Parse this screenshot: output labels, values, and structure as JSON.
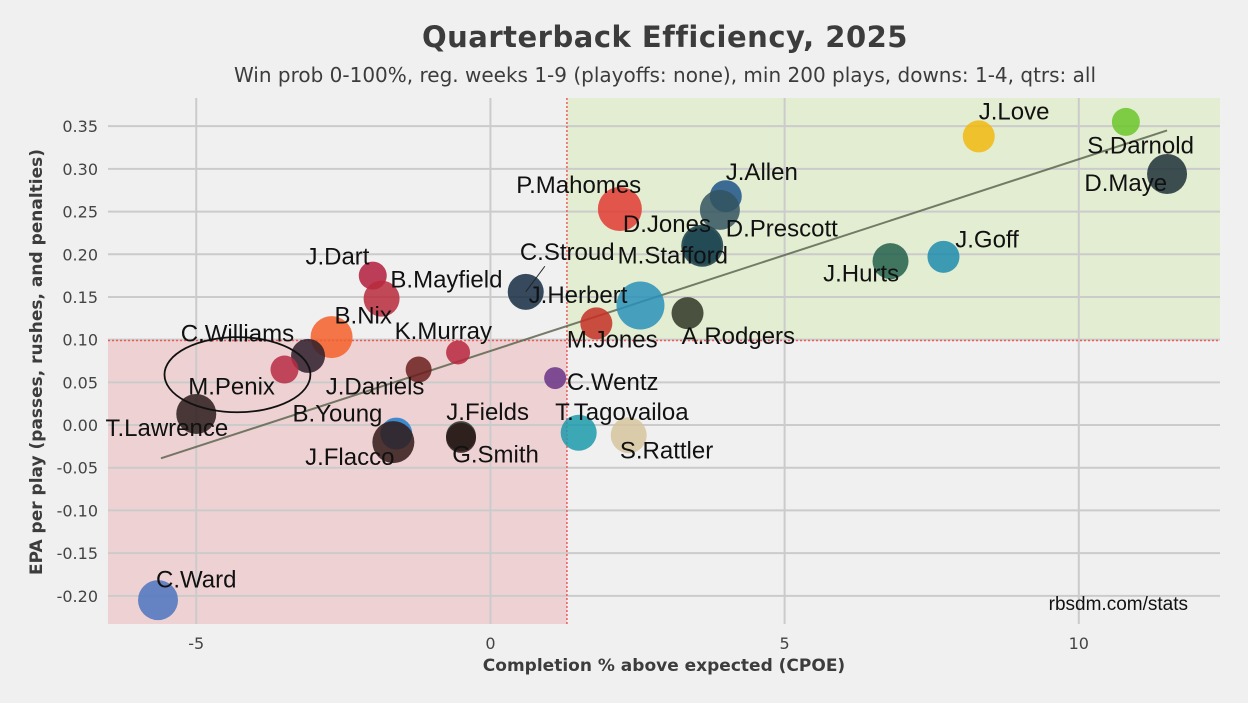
{
  "chart_data": {
    "type": "scatter",
    "title": "Quarterback Efficiency, 2025",
    "subtitle": "Win prob 0-100%, reg. weeks 1-9 (playoffs: none), min 200 plays, downs: 1-4, qtrs: all",
    "xlabel": "Completion % above expected (CPOE)",
    "ylabel": "EPA per play (passes, rushes, and penalties)",
    "xlim": [
      -6.5,
      12.4
    ],
    "ylim": [
      -0.233,
      0.383
    ],
    "x_ticks": [
      -5,
      0,
      5,
      10
    ],
    "x_tick_labels": [
      "-5",
      "0",
      "5",
      "10"
    ],
    "y_ticks": [
      0.35,
      0.3,
      0.25,
      0.2,
      0.15,
      0.1,
      0.05,
      0.0,
      -0.05,
      -0.1,
      -0.15,
      -0.2
    ],
    "y_tick_labels": [
      "0.35",
      "0.30",
      "0.25",
      "0.20",
      "0.15",
      "0.10",
      "0.05",
      "0.00",
      "-0.05",
      "-0.10",
      "-0.15",
      "-0.20"
    ],
    "grid": true,
    "avg_cpoe": 1.3,
    "avg_epa": 0.099,
    "trendline": {
      "x": [
        -5.6,
        11.5
      ],
      "y": [
        -0.039,
        0.345
      ]
    },
    "highlight_ellipse": {
      "cx": -4.3,
      "cy": 0.059,
      "rx": 1.24,
      "ry": 0.044
    },
    "watermark": "rbsdm.com/stats",
    "colors": {
      "background": "#f0f0f0",
      "grid": "#cbcbcb",
      "good_quadrant": "#e3edd2",
      "bad_quadrant": "#eed2d3",
      "divider": "#ee5a5a",
      "trendline": "#5e6650"
    },
    "points": [
      {
        "name": "J.Love",
        "x": 8.3,
        "y": 0.338,
        "size": 16,
        "color": "#f1b810",
        "lx": 8.3,
        "ly": 0.358,
        "anchor": "start"
      },
      {
        "name": "S.Darnold",
        "x": 10.8,
        "y": 0.355,
        "size": 14,
        "color": "#6cc62a",
        "lx": 11.05,
        "ly": 0.318,
        "anchor": "middle"
      },
      {
        "name": "D.Maye",
        "x": 11.5,
        "y": 0.294,
        "size": 20,
        "color": "#1e3038",
        "lx": 11.5,
        "ly": 0.274,
        "anchor": "end"
      },
      {
        "name": "J.Allen",
        "x": 4.0,
        "y": 0.268,
        "size": 16,
        "color": "#1d5288",
        "lx": 4.0,
        "ly": 0.287,
        "anchor": "start"
      },
      {
        "name": "P.Mahomes",
        "x": 2.2,
        "y": 0.253,
        "size": 22,
        "color": "#e23a32",
        "lx": 1.5,
        "ly": 0.272,
        "anchor": "middle"
      },
      {
        "name": "D.Jones",
        "x": 3.9,
        "y": 0.252,
        "size": 20,
        "color": "#32545f",
        "lx": 3.0,
        "ly": 0.226,
        "anchor": "middle"
      },
      {
        "name": "D.Prescott",
        "x": 3.6,
        "y": 0.21,
        "size": 21,
        "color": "#163944",
        "lx": 4.0,
        "ly": 0.221,
        "anchor": "start"
      },
      {
        "name": "M.Stafford",
        "x": 3.6,
        "y": 0.21,
        "size": 19,
        "color": "#1e4a56",
        "lx": 3.1,
        "ly": 0.189,
        "anchor": "middle"
      },
      {
        "name": "J.Goff",
        "x": 7.7,
        "y": 0.197,
        "size": 16,
        "color": "#1f8cae",
        "lx": 7.9,
        "ly": 0.208,
        "anchor": "start"
      },
      {
        "name": "J.Hurts",
        "x": 6.8,
        "y": 0.192,
        "size": 18,
        "color": "#235f4c",
        "lx": 6.3,
        "ly": 0.168,
        "anchor": "middle"
      },
      {
        "name": "J.Dart",
        "x": -2.0,
        "y": 0.175,
        "size": 14,
        "color": "#b31d3c",
        "lx": -2.6,
        "ly": 0.188,
        "anchor": "middle"
      },
      {
        "name": "B.Mayfield",
        "x": -1.85,
        "y": 0.148,
        "size": 18,
        "color": "#b72a3c",
        "lx": -1.7,
        "ly": 0.161,
        "anchor": "start"
      },
      {
        "name": "C.Stroud",
        "x": 0.6,
        "y": 0.156,
        "size": 18,
        "color": "#162d43",
        "lx": 0.5,
        "ly": 0.193,
        "anchor": "start",
        "leader": true
      },
      {
        "name": "J.Herbert",
        "x": 2.55,
        "y": 0.14,
        "size": 24,
        "color": "#2a90ba",
        "lx": 0.65,
        "ly": 0.143,
        "anchor": "start"
      },
      {
        "name": "A.Rodgers",
        "x": 3.35,
        "y": 0.131,
        "size": 16,
        "color": "#2f3524",
        "lx": 3.25,
        "ly": 0.095,
        "anchor": "start"
      },
      {
        "name": "B.Nix",
        "x": -2.7,
        "y": 0.103,
        "size": 21,
        "color": "#f5602a",
        "lx": -2.65,
        "ly": 0.119,
        "anchor": "start"
      },
      {
        "name": "M.Jones",
        "x": 1.8,
        "y": 0.119,
        "size": 16,
        "color": "#c43025",
        "lx": 1.3,
        "ly": 0.091,
        "anchor": "start"
      },
      {
        "name": "K.Murray",
        "x": -0.55,
        "y": 0.085,
        "size": 12,
        "color": "#b7283e",
        "lx": -0.8,
        "ly": 0.101,
        "anchor": "middle"
      },
      {
        "name": "C.Williams",
        "x": -3.1,
        "y": 0.081,
        "size": 17,
        "color": "#2d1f2a",
        "lx": -4.3,
        "ly": 0.098,
        "anchor": "middle"
      },
      {
        "name": "M.Penix",
        "x": -3.5,
        "y": 0.065,
        "size": 14,
        "color": "#b72c44",
        "lx": -4.4,
        "ly": 0.036,
        "anchor": "middle"
      },
      {
        "name": "J.Daniels",
        "x": -1.22,
        "y": 0.065,
        "size": 13,
        "color": "#6a1f1c",
        "lx": -2.8,
        "ly": 0.036,
        "anchor": "start"
      },
      {
        "name": "C.Wentz",
        "x": 1.1,
        "y": 0.055,
        "size": 11,
        "color": "#6a3487",
        "lx": 1.3,
        "ly": 0.041,
        "anchor": "start"
      },
      {
        "name": "T.Lawrence",
        "x": -5.0,
        "y": 0.013,
        "size": 20,
        "color": "#2a1c1a",
        "lx": -5.5,
        "ly": -0.013,
        "anchor": "middle"
      },
      {
        "name": "B.Young",
        "x": -1.6,
        "y": -0.01,
        "size": 16,
        "color": "#1f7ecb",
        "lx": -2.6,
        "ly": 0.004,
        "anchor": "middle"
      },
      {
        "name": "J.Fields",
        "x": -0.5,
        "y": -0.013,
        "size": 15,
        "color": "#1f3126",
        "lx": -0.75,
        "ly": 0.006,
        "anchor": "start"
      },
      {
        "name": "T.Tagovailoa",
        "x": 1.5,
        "y": -0.009,
        "size": 18,
        "color": "#1c9aaa",
        "lx": 1.1,
        "ly": 0.006,
        "anchor": "start"
      },
      {
        "name": "S.Rattler",
        "x": 2.35,
        "y": -0.012,
        "size": 18,
        "color": "#d6c49e",
        "lx": 2.2,
        "ly": -0.039,
        "anchor": "start"
      },
      {
        "name": "J.Flacco",
        "x": -1.65,
        "y": -0.02,
        "size": 21,
        "color": "#311a17",
        "lx": -3.15,
        "ly": -0.047,
        "anchor": "start"
      },
      {
        "name": "G.Smith",
        "x": -0.5,
        "y": -0.015,
        "size": 15,
        "color": "#2b1a18",
        "lx": -0.65,
        "ly": -0.044,
        "anchor": "start"
      },
      {
        "name": "C.Ward",
        "x": -5.65,
        "y": -0.205,
        "size": 20,
        "color": "#4c75c0",
        "lx": -5.0,
        "ly": -0.19,
        "anchor": "middle"
      }
    ]
  }
}
